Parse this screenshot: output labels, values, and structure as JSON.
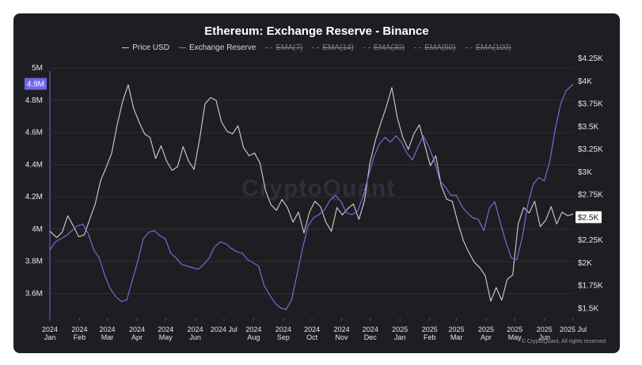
{
  "chart_data": {
    "type": "line",
    "title": "Ethereum: Exchange Reserve - Binance",
    "legend": [
      {
        "name": "Price USD",
        "active": true,
        "color": "#cfcfd4"
      },
      {
        "name": "Exchange Reserve",
        "active": true,
        "color": "#7a70f0"
      },
      {
        "name": "EMA(7)",
        "active": false
      },
      {
        "name": "EMA(14)",
        "active": false
      },
      {
        "name": "EMA(30)",
        "active": false
      },
      {
        "name": "EMA(50)",
        "active": false
      },
      {
        "name": "EMA(100)",
        "active": false
      }
    ],
    "legend_position": "top-center",
    "grid": true,
    "x_ticks": [
      {
        "year": "2024",
        "month": "Jan"
      },
      {
        "year": "2024",
        "month": "Feb"
      },
      {
        "year": "2024",
        "month": "Mar"
      },
      {
        "year": "2024",
        "month": "Apr"
      },
      {
        "year": "2024",
        "month": "May"
      },
      {
        "year": "2024",
        "month": "Jun"
      },
      {
        "year": "2024",
        "month": "Jul"
      },
      {
        "year": "2024",
        "month": "Aug"
      },
      {
        "year": "2024",
        "month": "Sep"
      },
      {
        "year": "2024",
        "month": "Oct"
      },
      {
        "year": "2024",
        "month": "Nov"
      },
      {
        "year": "2024",
        "month": "Dec"
      },
      {
        "year": "2025",
        "month": "Jan"
      },
      {
        "year": "2025",
        "month": "Feb"
      },
      {
        "year": "2025",
        "month": "Mar"
      },
      {
        "year": "2025",
        "month": "Apr"
      },
      {
        "year": "2025",
        "month": "May"
      },
      {
        "year": "2025",
        "month": "Jun"
      },
      {
        "year": "2025",
        "month": "Jul"
      }
    ],
    "y_left": {
      "label": "",
      "ticks": [
        "5M",
        "4.8M",
        "4.6M",
        "4.4M",
        "4.2M",
        "4M",
        "3.8M",
        "3.6M"
      ],
      "tick_values": [
        5.0,
        4.8,
        4.6,
        4.4,
        4.2,
        4.0,
        3.8,
        3.6
      ],
      "unit": "M",
      "range": [
        3.45,
        5.06
      ],
      "current_label": "4.9M"
    },
    "y_right": {
      "label": "",
      "ticks": [
        "$4.25K",
        "$4K",
        "$3.75K",
        "$3.5K",
        "$3.25K",
        "$3K",
        "$2.75K",
        "$2.5K",
        "$2.25K",
        "$2K",
        "$1.75K",
        "$1.5K"
      ],
      "tick_values": [
        4250,
        4000,
        3750,
        3500,
        3250,
        3000,
        2750,
        2500,
        2250,
        2000,
        1750,
        1500
      ],
      "range": [
        1400,
        4250
      ],
      "current_label": "$2.5K"
    },
    "series": [
      {
        "name": "Price USD",
        "axis": "right",
        "color": "#cfcfd4",
        "points": [
          [
            0,
            2350
          ],
          [
            5,
            2280
          ],
          [
            9,
            2340
          ],
          [
            13,
            2520
          ],
          [
            17,
            2410
          ],
          [
            21,
            2290
          ],
          [
            25,
            2310
          ],
          [
            29,
            2480
          ],
          [
            33,
            2650
          ],
          [
            37,
            2910
          ],
          [
            41,
            3050
          ],
          [
            45,
            3210
          ],
          [
            49,
            3520
          ],
          [
            53,
            3780
          ],
          [
            57,
            3960
          ],
          [
            61,
            3700
          ],
          [
            65,
            3550
          ],
          [
            69,
            3420
          ],
          [
            73,
            3380
          ],
          [
            77,
            3150
          ],
          [
            81,
            3290
          ],
          [
            85,
            3120
          ],
          [
            89,
            3020
          ],
          [
            93,
            3060
          ],
          [
            97,
            3280
          ],
          [
            101,
            3120
          ],
          [
            105,
            3030
          ],
          [
            109,
            3360
          ],
          [
            113,
            3750
          ],
          [
            117,
            3820
          ],
          [
            121,
            3790
          ],
          [
            125,
            3550
          ],
          [
            129,
            3450
          ],
          [
            133,
            3420
          ],
          [
            137,
            3510
          ],
          [
            141,
            3270
          ],
          [
            145,
            3180
          ],
          [
            149,
            3210
          ],
          [
            153,
            3100
          ],
          [
            157,
            2800
          ],
          [
            161,
            2640
          ],
          [
            165,
            2580
          ],
          [
            169,
            2700
          ],
          [
            173,
            2610
          ],
          [
            177,
            2450
          ],
          [
            181,
            2560
          ],
          [
            185,
            2330
          ],
          [
            189,
            2560
          ],
          [
            193,
            2680
          ],
          [
            197,
            2620
          ],
          [
            201,
            2450
          ],
          [
            205,
            2350
          ],
          [
            209,
            2610
          ],
          [
            213,
            2530
          ],
          [
            217,
            2600
          ],
          [
            221,
            2650
          ],
          [
            225,
            2480
          ],
          [
            229,
            2680
          ],
          [
            233,
            3100
          ],
          [
            237,
            3350
          ],
          [
            241,
            3540
          ],
          [
            245,
            3720
          ],
          [
            249,
            3930
          ],
          [
            253,
            3600
          ],
          [
            257,
            3380
          ],
          [
            261,
            3250
          ],
          [
            265,
            3420
          ],
          [
            269,
            3520
          ],
          [
            273,
            3300
          ],
          [
            277,
            3070
          ],
          [
            281,
            3180
          ],
          [
            285,
            2850
          ],
          [
            289,
            2700
          ],
          [
            293,
            2680
          ],
          [
            297,
            2450
          ],
          [
            301,
            2250
          ],
          [
            305,
            2120
          ],
          [
            309,
            2010
          ],
          [
            313,
            1950
          ],
          [
            317,
            1860
          ],
          [
            321,
            1580
          ],
          [
            325,
            1730
          ],
          [
            329,
            1590
          ],
          [
            333,
            1820
          ],
          [
            337,
            1870
          ],
          [
            341,
            2430
          ],
          [
            345,
            2610
          ],
          [
            349,
            2550
          ],
          [
            353,
            2680
          ],
          [
            357,
            2400
          ],
          [
            361,
            2470
          ],
          [
            365,
            2620
          ],
          [
            369,
            2430
          ],
          [
            373,
            2560
          ],
          [
            377,
            2520
          ],
          [
            381,
            2540
          ]
        ]
      },
      {
        "name": "Exchange Reserve",
        "axis": "left",
        "color": "#7a70f0",
        "points": [
          [
            0,
            3.87
          ],
          [
            4,
            3.92
          ],
          [
            8,
            3.94
          ],
          [
            12,
            3.96
          ],
          [
            16,
            3.99
          ],
          [
            20,
            4.02
          ],
          [
            24,
            4.03
          ],
          [
            28,
            3.97
          ],
          [
            32,
            3.87
          ],
          [
            36,
            3.82
          ],
          [
            40,
            3.71
          ],
          [
            44,
            3.63
          ],
          [
            48,
            3.58
          ],
          [
            52,
            3.55
          ],
          [
            56,
            3.56
          ],
          [
            60,
            3.68
          ],
          [
            64,
            3.8
          ],
          [
            68,
            3.94
          ],
          [
            72,
            3.98
          ],
          [
            76,
            3.99
          ],
          [
            80,
            3.96
          ],
          [
            84,
            3.94
          ],
          [
            88,
            3.85
          ],
          [
            92,
            3.82
          ],
          [
            96,
            3.78
          ],
          [
            100,
            3.77
          ],
          [
            104,
            3.76
          ],
          [
            108,
            3.75
          ],
          [
            112,
            3.78
          ],
          [
            116,
            3.82
          ],
          [
            120,
            3.89
          ],
          [
            124,
            3.92
          ],
          [
            128,
            3.91
          ],
          [
            132,
            3.88
          ],
          [
            136,
            3.86
          ],
          [
            140,
            3.85
          ],
          [
            144,
            3.81
          ],
          [
            148,
            3.79
          ],
          [
            152,
            3.77
          ],
          [
            156,
            3.65
          ],
          [
            160,
            3.59
          ],
          [
            164,
            3.54
          ],
          [
            168,
            3.51
          ],
          [
            172,
            3.5
          ],
          [
            176,
            3.56
          ],
          [
            180,
            3.72
          ],
          [
            184,
            3.88
          ],
          [
            188,
            4.02
          ],
          [
            192,
            4.07
          ],
          [
            196,
            4.09
          ],
          [
            200,
            4.12
          ],
          [
            204,
            4.18
          ],
          [
            208,
            4.21
          ],
          [
            212,
            4.17
          ],
          [
            216,
            4.1
          ],
          [
            220,
            4.09
          ],
          [
            224,
            4.11
          ],
          [
            228,
            4.2
          ],
          [
            232,
            4.33
          ],
          [
            236,
            4.45
          ],
          [
            240,
            4.53
          ],
          [
            244,
            4.57
          ],
          [
            248,
            4.54
          ],
          [
            252,
            4.58
          ],
          [
            256,
            4.54
          ],
          [
            260,
            4.47
          ],
          [
            264,
            4.43
          ],
          [
            268,
            4.51
          ],
          [
            272,
            4.58
          ],
          [
            276,
            4.51
          ],
          [
            280,
            4.42
          ],
          [
            284,
            4.3
          ],
          [
            288,
            4.26
          ],
          [
            292,
            4.21
          ],
          [
            296,
            4.21
          ],
          [
            300,
            4.14
          ],
          [
            304,
            4.1
          ],
          [
            308,
            4.07
          ],
          [
            312,
            4.06
          ],
          [
            316,
            3.99
          ],
          [
            320,
            4.13
          ],
          [
            324,
            4.17
          ],
          [
            328,
            4.04
          ],
          [
            332,
            3.92
          ],
          [
            336,
            3.82
          ],
          [
            340,
            3.81
          ],
          [
            344,
            3.95
          ],
          [
            348,
            4.15
          ],
          [
            352,
            4.28
          ],
          [
            356,
            4.32
          ],
          [
            360,
            4.3
          ],
          [
            364,
            4.42
          ],
          [
            368,
            4.62
          ],
          [
            372,
            4.78
          ],
          [
            376,
            4.86
          ],
          [
            381,
            4.9
          ]
        ]
      }
    ],
    "watermark": "CryptoQuant",
    "copyright": "© CryptoQuant. All rights reserved"
  },
  "colors": {
    "background": "#1e1e22",
    "grid": "#2e2e34",
    "axis_text": "#e6e6ea",
    "reserve_label_bg": "#6f66e8",
    "price_label_bg": "#ffffff"
  }
}
